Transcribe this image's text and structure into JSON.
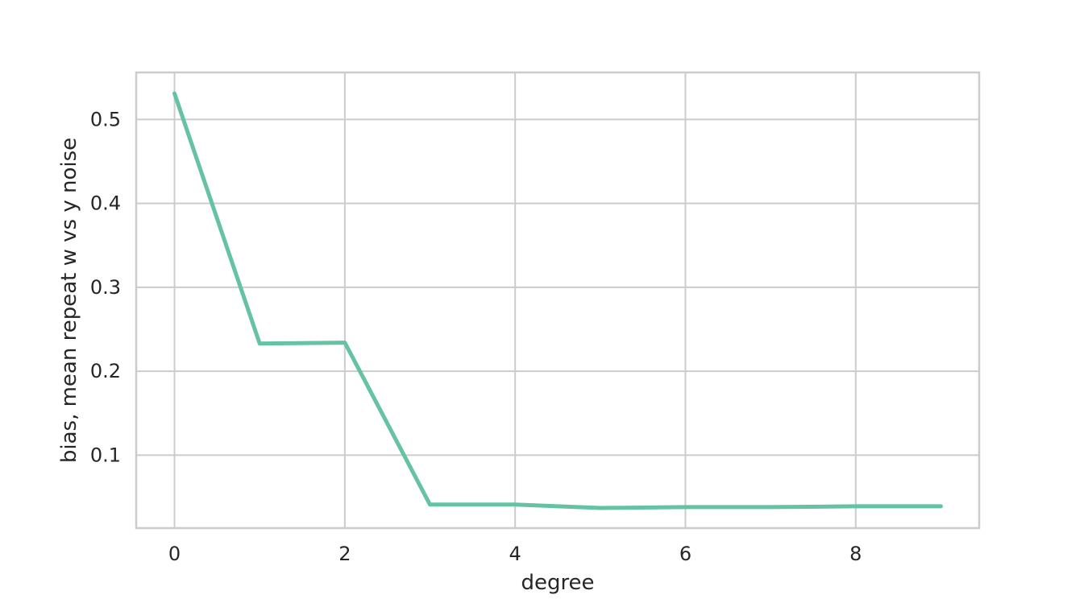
{
  "chart_data": {
    "type": "line",
    "title": "",
    "xlabel": "degree",
    "ylabel": "bias, mean repeat w vs y noise",
    "xlim": [
      -0.45,
      9.45
    ],
    "ylim": [
      0.013,
      0.556
    ],
    "xticks": [
      0,
      2,
      4,
      6,
      8
    ],
    "xtick_labels": [
      "0",
      "2",
      "4",
      "6",
      "8"
    ],
    "yticks": [
      0.1,
      0.2,
      0.3,
      0.4,
      0.5
    ],
    "ytick_labels": [
      "0.1",
      "0.2",
      "0.3",
      "0.4",
      "0.5"
    ],
    "grid": true,
    "legend": "none",
    "series": [
      {
        "color": "#66c2a5",
        "x": [
          0,
          1,
          2,
          3,
          4,
          5,
          6,
          7,
          8,
          9
        ],
        "y": [
          0.531,
          0.233,
          0.234,
          0.041,
          0.041,
          0.037,
          0.038,
          0.038,
          0.039,
          0.039
        ]
      }
    ]
  }
}
